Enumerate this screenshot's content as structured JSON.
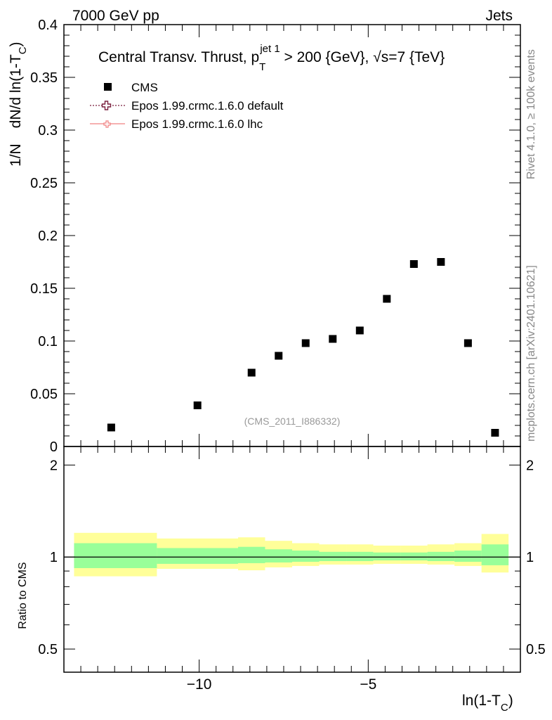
{
  "header": {
    "left": "7000 GeV pp",
    "right": "Jets"
  },
  "title": {
    "main": "Central Transv. Thrust, p",
    "sub": "T",
    "sup": "jet 1",
    "tail": " > 200 {GeV}, √s=7 {TeV}"
  },
  "side_text": {
    "rivet": "Rivet 4.1.0, ≥ 100k events",
    "mcplots": "mcplots.cern.ch [arXiv:2401.10621]"
  },
  "analysis_id": "(CMS_2011_I886332)",
  "legend": [
    {
      "label": "CMS",
      "style": "data",
      "color": "#000000"
    },
    {
      "label": "Epos 1.99.crmc.1.6.0 default",
      "style": "mc-default",
      "color": "#7a1f3d"
    },
    {
      "label": "Epos 1.99.crmc.1.6.0 lhc",
      "style": "mc-lhc",
      "color": "#f08080"
    }
  ],
  "colors": {
    "band_outer": "#ffff99",
    "band_inner": "#99ff99",
    "marker": "#000000"
  },
  "chart_data": [
    {
      "type": "scatter",
      "title": "Central Transv. Thrust, p_T^{jet 1} > 200 {GeV}, √s=7 {TeV}",
      "ylabel_parts": [
        "1/N",
        "dN/d ln(1-T",
        "C",
        ")"
      ],
      "xlim": [
        -14.0,
        -0.5
      ],
      "ylim": [
        0.0,
        0.4
      ],
      "yticks": [
        {
          "v": 0,
          "label": "0"
        },
        {
          "v": 0.05,
          "label": "0.05"
        },
        {
          "v": 0.1,
          "label": "0.1"
        },
        {
          "v": 0.15,
          "label": "0.15"
        },
        {
          "v": 0.2,
          "label": "0.2"
        },
        {
          "v": 0.25,
          "label": "0.25"
        },
        {
          "v": 0.3,
          "label": "0.3"
        },
        {
          "v": 0.35,
          "label": "0.35"
        },
        {
          "v": 0.4,
          "label": "0.4"
        }
      ],
      "series": [
        {
          "name": "CMS",
          "x": [
            -12.6,
            -10.05,
            -8.45,
            -7.65,
            -6.85,
            -6.05,
            -5.25,
            -4.45,
            -3.65,
            -2.85,
            -2.05,
            -1.25
          ],
          "values": [
            0.018,
            0.039,
            0.07,
            0.086,
            0.098,
            0.102,
            0.11,
            0.14,
            0.173,
            0.175,
            0.098,
            0.013
          ]
        }
      ]
    },
    {
      "type": "area",
      "ylabel": "Ratio to CMS",
      "xlabel_parts": [
        "ln(1-T",
        "C",
        ")"
      ],
      "xlim": [
        -14.0,
        -0.5
      ],
      "ylim": [
        0.42,
        2.3
      ],
      "log_y": true,
      "yticks": [
        {
          "v": 0.5,
          "label": "0.5"
        },
        {
          "v": 1,
          "label": "1"
        },
        {
          "v": 2,
          "label": "2"
        }
      ],
      "xticks": [
        {
          "v": -10,
          "label": "−10"
        },
        {
          "v": -5,
          "label": "−5"
        }
      ],
      "reference": 1.0,
      "bands": [
        {
          "x0": -13.7,
          "x1": -11.25,
          "outer": [
            0.865,
            1.2
          ],
          "inner": [
            0.92,
            1.11
          ]
        },
        {
          "x0": -11.25,
          "x1": -8.85,
          "outer": [
            0.915,
            1.15
          ],
          "inner": [
            0.95,
            1.07
          ]
        },
        {
          "x0": -8.85,
          "x1": -8.05,
          "outer": [
            0.905,
            1.16
          ],
          "inner": [
            0.955,
            1.08
          ]
        },
        {
          "x0": -8.05,
          "x1": -7.25,
          "outer": [
            0.925,
            1.13
          ],
          "inner": [
            0.96,
            1.06
          ]
        },
        {
          "x0": -7.25,
          "x1": -6.45,
          "outer": [
            0.935,
            1.11
          ],
          "inner": [
            0.965,
            1.05
          ]
        },
        {
          "x0": -6.45,
          "x1": -5.65,
          "outer": [
            0.945,
            1.1
          ],
          "inner": [
            0.97,
            1.04
          ]
        },
        {
          "x0": -5.65,
          "x1": -4.85,
          "outer": [
            0.945,
            1.1
          ],
          "inner": [
            0.97,
            1.04
          ]
        },
        {
          "x0": -4.85,
          "x1": -4.05,
          "outer": [
            0.95,
            1.09
          ],
          "inner": [
            0.975,
            1.035
          ]
        },
        {
          "x0": -4.05,
          "x1": -3.25,
          "outer": [
            0.95,
            1.09
          ],
          "inner": [
            0.975,
            1.035
          ]
        },
        {
          "x0": -3.25,
          "x1": -2.45,
          "outer": [
            0.945,
            1.1
          ],
          "inner": [
            0.97,
            1.04
          ]
        },
        {
          "x0": -2.45,
          "x1": -1.65,
          "outer": [
            0.935,
            1.11
          ],
          "inner": [
            0.965,
            1.05
          ]
        },
        {
          "x0": -1.65,
          "x1": -0.85,
          "outer": [
            0.89,
            1.19
          ],
          "inner": [
            0.94,
            1.1
          ]
        }
      ]
    }
  ]
}
